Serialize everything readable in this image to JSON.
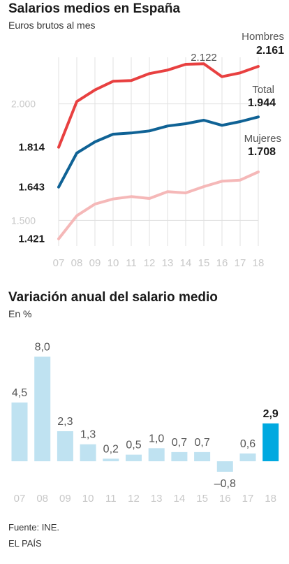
{
  "line_chart": {
    "title": "Salarios medios en España",
    "subtitle": "Euros brutos al mes"
  },
  "bar_chart": {
    "title": "Variación anual del salario medio",
    "subtitle": "En %"
  },
  "footer": {
    "source": "Fuente: INE.",
    "brand": "EL PAÍS"
  },
  "chart_data": [
    {
      "type": "line",
      "title": "Salarios medios en España",
      "subtitle": "Euros brutos al mes",
      "x": [
        "07",
        "08",
        "09",
        "10",
        "11",
        "12",
        "13",
        "14",
        "15",
        "16",
        "17",
        "18"
      ],
      "yticks": [
        1500,
        2000
      ],
      "ytick_labels": [
        "1.500",
        "2.000"
      ],
      "ylim": [
        1390,
        2200
      ],
      "grid": true,
      "series": [
        {
          "name": "Hombres",
          "color": "#e84040",
          "values": [
            1814,
            2010,
            2060,
            2097,
            2100,
            2130,
            2145,
            2170,
            2172,
            2117,
            2133,
            2161
          ]
        },
        {
          "name": "Total",
          "color": "#0f6295",
          "values": [
            1643,
            1789,
            1837,
            1870,
            1875,
            1884,
            1905,
            1915,
            1930,
            1908,
            1924,
            1944
          ]
        },
        {
          "name": "Mujeres",
          "color": "#f5b8b8",
          "values": [
            1421,
            1520,
            1570,
            1592,
            1602,
            1594,
            1623,
            1618,
            1645,
            1668,
            1673,
            1708
          ]
        }
      ],
      "labels": [
        {
          "text": "1.814",
          "bold": true
        },
        {
          "text": "1.643",
          "bold": true
        },
        {
          "text": "1.421",
          "bold": true
        },
        {
          "text": "2.122",
          "bold": false
        },
        {
          "text": "Hombres",
          "bold": false
        },
        {
          "text": "2.161",
          "bold": true
        },
        {
          "text": "Total",
          "bold": false
        },
        {
          "text": "1.944",
          "bold": true
        },
        {
          "text": "Mujeres",
          "bold": false
        },
        {
          "text": "1.708",
          "bold": true
        }
      ]
    },
    {
      "type": "bar",
      "title": "Variación anual del salario medio",
      "subtitle": "En %",
      "categories": [
        "07",
        "08",
        "09",
        "10",
        "11",
        "12",
        "13",
        "14",
        "15",
        "16",
        "17",
        "18"
      ],
      "values": [
        4.5,
        8.0,
        2.3,
        1.3,
        0.2,
        0.5,
        1.0,
        0.7,
        0.7,
        -0.8,
        0.6,
        2.9
      ],
      "value_labels": [
        "4,5",
        "8,0",
        "2,3",
        "1,3",
        "0,2",
        "0,5",
        "1,0",
        "0,7",
        "0,7",
        "–0,8",
        "0,6",
        "2,9"
      ],
      "highlight_index": 11,
      "colors": {
        "bar": "#bfe2f1",
        "highlight": "#00a9e0"
      }
    }
  ]
}
